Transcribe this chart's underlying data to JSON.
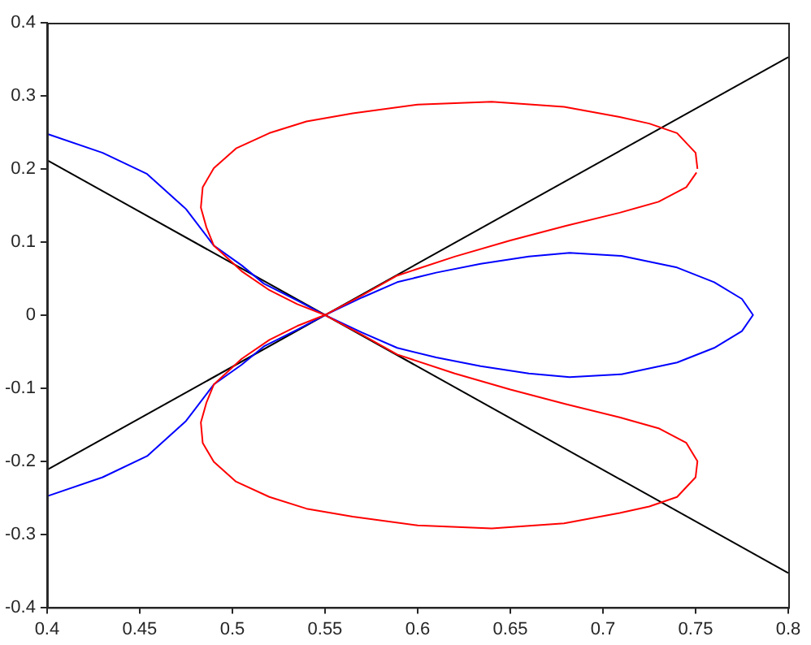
{
  "chart_data": {
    "type": "line",
    "xlim": [
      0.4,
      0.8
    ],
    "ylim": [
      -0.4,
      0.4
    ],
    "xticks": [
      0.4,
      0.45,
      0.5,
      0.55,
      0.6,
      0.65,
      0.7,
      0.75,
      0.8
    ],
    "yticks": [
      -0.4,
      -0.3,
      -0.2,
      -0.1,
      0,
      0.1,
      0.2,
      0.3,
      0.4
    ],
    "grid": false,
    "legend": false,
    "marker": "none",
    "line_style": "solid",
    "series": [
      {
        "color": "#ff0000",
        "x": [
          0.751,
          0.75,
          0.74,
          0.725,
          0.709,
          0.679,
          0.64,
          0.6,
          0.565,
          0.54,
          0.52,
          0.502,
          0.49,
          0.484,
          0.483,
          0.486,
          0.49,
          0.505,
          0.52,
          0.535,
          0.55,
          0.57,
          0.589,
          0.62,
          0.65,
          0.68,
          0.709,
          0.73,
          0.745,
          0.751,
          0.75,
          0.74,
          0.725,
          0.709,
          0.679,
          0.64,
          0.6,
          0.565,
          0.54,
          0.52,
          0.502,
          0.49,
          0.484,
          0.483,
          0.486,
          0.49,
          0.505,
          0.52,
          0.535,
          0.55,
          0.57,
          0.589,
          0.62,
          0.65,
          0.68,
          0.709,
          0.73,
          0.745,
          0.7505
        ],
        "values": [
          0.2,
          0.222,
          0.249,
          0.262,
          0.271,
          0.285,
          0.292,
          0.288,
          0.276,
          0.265,
          0.249,
          0.228,
          0.201,
          0.175,
          0.147,
          0.12,
          0.095,
          0.06,
          0.034,
          0.015,
          0,
          -0.027,
          -0.054,
          -0.08,
          -0.102,
          -0.122,
          -0.14,
          -0.155,
          -0.175,
          -0.2,
          -0.222,
          -0.249,
          -0.262,
          -0.271,
          -0.285,
          -0.292,
          -0.288,
          -0.276,
          -0.265,
          -0.249,
          -0.228,
          -0.201,
          -0.175,
          -0.147,
          -0.12,
          -0.095,
          -0.06,
          -0.034,
          -0.015,
          0,
          0.027,
          0.054,
          0.08,
          0.102,
          0.122,
          0.14,
          0.155,
          0.175,
          0.195
        ]
      },
      {
        "color": "#0000ff",
        "x": [
          0.4,
          0.43,
          0.454,
          0.475,
          0.49,
          0.505,
          0.517,
          0.535,
          0.55,
          0.57,
          0.589,
          0.61,
          0.634,
          0.66,
          0.682,
          0.71,
          0.74,
          0.76,
          0.775,
          0.781,
          0.775,
          0.76,
          0.74,
          0.71,
          0.682,
          0.66,
          0.634,
          0.61,
          0.589,
          0.57,
          0.55,
          0.535,
          0.517,
          0.505,
          0.49,
          0.475,
          0.454,
          0.43,
          0.4
        ],
        "values": [
          0.248,
          0.222,
          0.193,
          0.145,
          0.095,
          0.068,
          0.043,
          0.02,
          0,
          -0.024,
          -0.045,
          -0.058,
          -0.07,
          -0.08,
          -0.085,
          -0.081,
          -0.065,
          -0.045,
          -0.022,
          0,
          0.022,
          0.045,
          0.065,
          0.081,
          0.085,
          0.08,
          0.07,
          0.058,
          0.045,
          0.024,
          0,
          -0.02,
          -0.043,
          -0.068,
          -0.095,
          -0.145,
          -0.193,
          -0.222,
          -0.248
        ]
      },
      {
        "color": "#000000",
        "x": [
          0.4,
          0.8
        ],
        "values": [
          -0.212,
          0.353
        ]
      },
      {
        "color": "#000000",
        "x": [
          0.4,
          0.8
        ],
        "values": [
          0.212,
          -0.353
        ]
      }
    ]
  }
}
